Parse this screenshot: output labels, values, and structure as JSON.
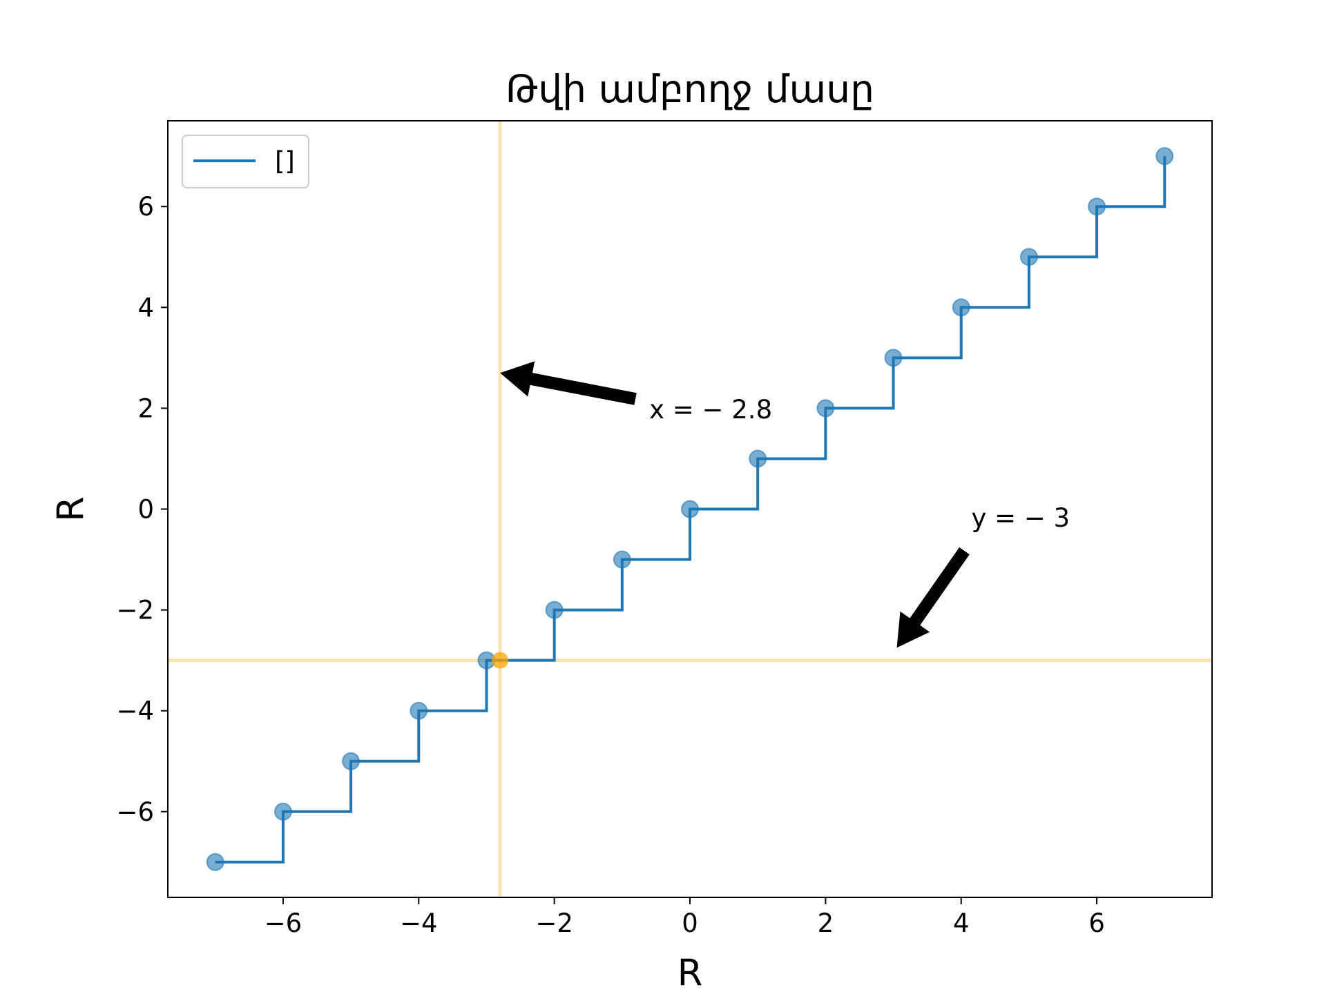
{
  "chart_data": {
    "type": "line",
    "title": "Թվի ամբողջ մասը",
    "xlabel": "R",
    "ylabel": "R",
    "xlim": [
      -7.7,
      7.7
    ],
    "ylim": [
      -7.7,
      7.7
    ],
    "xticks": [
      -6,
      -4,
      -2,
      0,
      2,
      4,
      6
    ],
    "yticks": [
      -6,
      -4,
      -2,
      0,
      2,
      4,
      6
    ],
    "xtick_labels": [
      "−6",
      "−4",
      "−2",
      "0",
      "2",
      "4",
      "6"
    ],
    "ytick_labels": [
      "−6",
      "−4",
      "−2",
      "0",
      "2",
      "4",
      "6"
    ],
    "grid": false,
    "legend": {
      "placement": "top-left",
      "entries": [
        "[]"
      ]
    },
    "series": [
      {
        "name": "[]",
        "step": "post",
        "x": [
          -7,
          -6,
          -5,
          -4,
          -3,
          -2,
          -1,
          0,
          1,
          2,
          3,
          4,
          5,
          6,
          7
        ],
        "y": [
          -7,
          -6,
          -5,
          -4,
          -3,
          -2,
          -1,
          0,
          1,
          2,
          3,
          4,
          5,
          6,
          7
        ],
        "color": "#1f77b4"
      }
    ],
    "highlight_point": {
      "x": -2.8,
      "y": -3,
      "color": "#ffa500"
    },
    "reference_lines": [
      {
        "orientation": "vertical",
        "value": -2.8,
        "color": "#ffa500"
      },
      {
        "orientation": "horizontal",
        "value": -3,
        "color": "#ffa500"
      }
    ],
    "annotations": [
      {
        "text": "x = − 2.8",
        "arrow_to": {
          "x": -2.8,
          "y": 2.7
        },
        "text_at": {
          "x": -0.6,
          "y": 1.8
        }
      },
      {
        "text": "y = − 3",
        "arrow_to": {
          "x": 3.05,
          "y": -2.75
        },
        "text_at": {
          "x": 4.15,
          "y": -0.35
        }
      }
    ]
  }
}
